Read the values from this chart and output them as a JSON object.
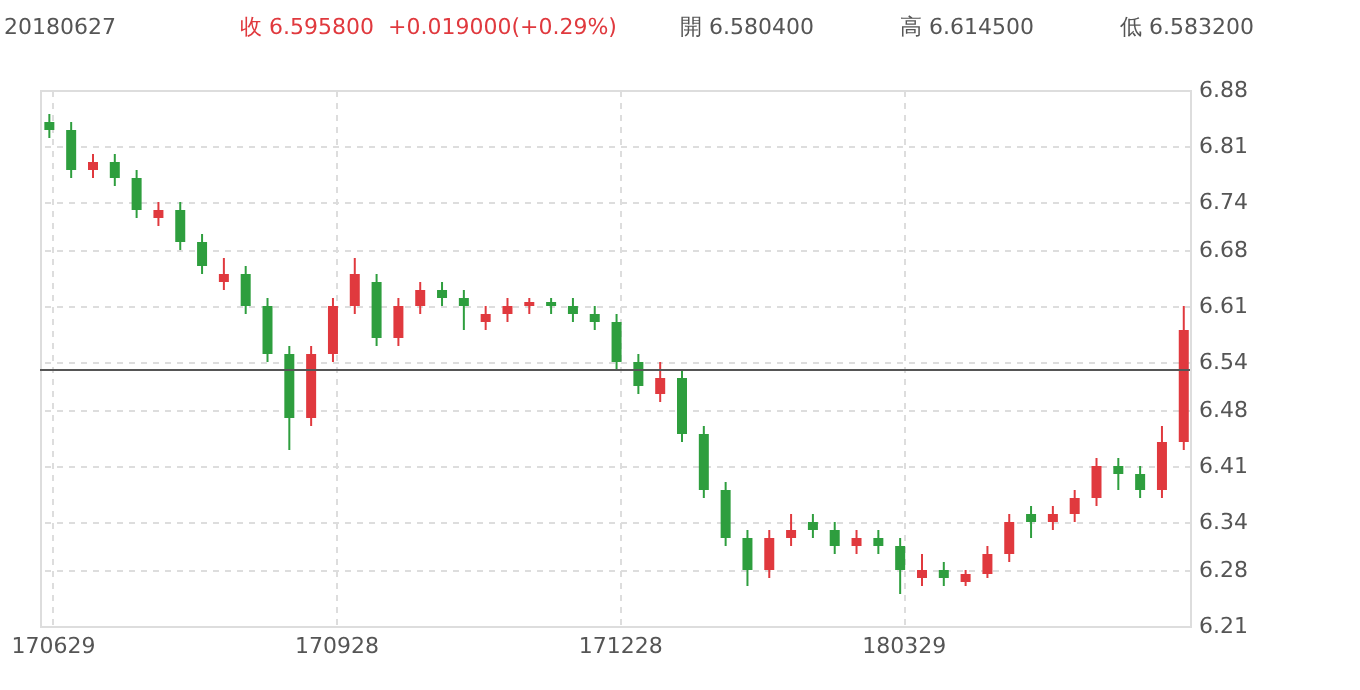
{
  "chart_data": {
    "type": "candlestick",
    "annotations": [
      "20180627",
      "收 6.595800",
      "+0.019000(+0.29%)",
      "開 6.580400",
      "高 6.614500",
      "低 6.583200"
    ],
    "x": [
      "2017-06-28",
      "2017-07-05",
      "2017-07-12",
      "2017-07-19",
      "2017-07-26",
      "2017-08-02",
      "2017-08-09",
      "2017-08-16",
      "2017-08-23",
      "2017-08-30",
      "2017-09-06",
      "2017-09-13",
      "2017-09-20",
      "2017-09-27",
      "2017-10-04",
      "2017-10-11",
      "2017-10-18",
      "2017-10-25",
      "2017-11-01",
      "2017-11-08",
      "2017-11-15",
      "2017-11-22",
      "2017-11-29",
      "2017-12-06",
      "2017-12-13",
      "2017-12-20",
      "2017-12-27",
      "2018-01-03",
      "2018-01-10",
      "2018-01-17",
      "2018-01-24",
      "2018-01-31",
      "2018-02-07",
      "2018-02-14",
      "2018-02-21",
      "2018-02-28",
      "2018-03-07",
      "2018-03-14",
      "2018-03-21",
      "2018-03-28",
      "2018-04-04",
      "2018-04-11",
      "2018-04-18",
      "2018-04-25",
      "2018-05-02",
      "2018-05-09",
      "2018-05-16",
      "2018-05-23",
      "2018-05-30",
      "2018-06-06",
      "2018-06-13",
      "2018-06-20",
      "2018-06-27"
    ],
    "ohlc": [
      [
        6.84,
        6.85,
        6.82,
        6.83
      ],
      [
        6.83,
        6.84,
        6.77,
        6.78
      ],
      [
        6.78,
        6.8,
        6.77,
        6.79
      ],
      [
        6.79,
        6.8,
        6.76,
        6.77
      ],
      [
        6.77,
        6.78,
        6.72,
        6.73
      ],
      [
        6.72,
        6.74,
        6.71,
        6.73
      ],
      [
        6.73,
        6.74,
        6.68,
        6.69
      ],
      [
        6.69,
        6.7,
        6.65,
        6.66
      ],
      [
        6.64,
        6.67,
        6.63,
        6.65
      ],
      [
        6.65,
        6.66,
        6.6,
        6.61
      ],
      [
        6.61,
        6.62,
        6.54,
        6.55
      ],
      [
        6.55,
        6.56,
        6.43,
        6.47
      ],
      [
        6.47,
        6.56,
        6.46,
        6.55
      ],
      [
        6.55,
        6.62,
        6.54,
        6.61
      ],
      [
        6.61,
        6.67,
        6.6,
        6.65
      ],
      [
        6.64,
        6.65,
        6.56,
        6.57
      ],
      [
        6.57,
        6.62,
        6.56,
        6.61
      ],
      [
        6.61,
        6.64,
        6.6,
        6.63
      ],
      [
        6.63,
        6.64,
        6.61,
        6.62
      ],
      [
        6.62,
        6.63,
        6.58,
        6.61
      ],
      [
        6.59,
        6.61,
        6.58,
        6.6
      ],
      [
        6.6,
        6.62,
        6.59,
        6.61
      ],
      [
        6.61,
        6.62,
        6.6,
        6.615
      ],
      [
        6.615,
        6.62,
        6.6,
        6.61
      ],
      [
        6.61,
        6.62,
        6.59,
        6.6
      ],
      [
        6.6,
        6.61,
        6.58,
        6.59
      ],
      [
        6.59,
        6.6,
        6.53,
        6.54
      ],
      [
        6.54,
        6.55,
        6.5,
        6.51
      ],
      [
        6.5,
        6.54,
        6.49,
        6.52
      ],
      [
        6.52,
        6.53,
        6.44,
        6.45
      ],
      [
        6.45,
        6.46,
        6.37,
        6.38
      ],
      [
        6.38,
        6.39,
        6.31,
        6.32
      ],
      [
        6.32,
        6.33,
        6.26,
        6.28
      ],
      [
        6.28,
        6.33,
        6.27,
        6.32
      ],
      [
        6.32,
        6.35,
        6.31,
        6.33
      ],
      [
        6.34,
        6.35,
        6.32,
        6.33
      ],
      [
        6.33,
        6.34,
        6.3,
        6.31
      ],
      [
        6.31,
        6.33,
        6.3,
        6.32
      ],
      [
        6.32,
        6.33,
        6.3,
        6.31
      ],
      [
        6.31,
        6.32,
        6.25,
        6.28
      ],
      [
        6.27,
        6.3,
        6.26,
        6.28
      ],
      [
        6.28,
        6.29,
        6.26,
        6.27
      ],
      [
        6.265,
        6.28,
        6.26,
        6.275
      ],
      [
        6.275,
        6.31,
        6.27,
        6.3
      ],
      [
        6.3,
        6.35,
        6.29,
        6.34
      ],
      [
        6.35,
        6.36,
        6.32,
        6.34
      ],
      [
        6.34,
        6.36,
        6.33,
        6.35
      ],
      [
        6.35,
        6.38,
        6.34,
        6.37
      ],
      [
        6.37,
        6.42,
        6.36,
        6.41
      ],
      [
        6.41,
        6.42,
        6.38,
        6.4
      ],
      [
        6.4,
        6.41,
        6.37,
        6.38
      ],
      [
        6.38,
        6.46,
        6.37,
        6.44
      ],
      [
        6.44,
        6.61,
        6.43,
        6.58
      ]
    ],
    "colors": [
      "#2e9e3e",
      "#2e9e3e",
      "#e0393e",
      "#2e9e3e",
      "#2e9e3e",
      "#e0393e",
      "#2e9e3e",
      "#2e9e3e",
      "#e0393e",
      "#2e9e3e",
      "#2e9e3e",
      "#2e9e3e",
      "#e0393e",
      "#e0393e",
      "#e0393e",
      "#2e9e3e",
      "#e0393e",
      "#e0393e",
      "#2e9e3e",
      "#2e9e3e",
      "#e0393e",
      "#e0393e",
      "#e0393e",
      "#2e9e3e",
      "#2e9e3e",
      "#2e9e3e",
      "#2e9e3e",
      "#2e9e3e",
      "#e0393e",
      "#2e9e3e",
      "#2e9e3e",
      "#2e9e3e",
      "#2e9e3e",
      "#e0393e",
      "#e0393e",
      "#2e9e3e",
      "#2e9e3e",
      "#e0393e",
      "#2e9e3e",
      "#2e9e3e",
      "#e0393e",
      "#2e9e3e",
      "#e0393e",
      "#e0393e",
      "#e0393e",
      "#2e9e3e",
      "#e0393e",
      "#e0393e",
      "#e0393e",
      "#2e9e3e",
      "#2e9e3e",
      "#e0393e",
      "#e0393e"
    ],
    "xlim": [
      "2017-06-25",
      "2018-06-29"
    ],
    "xticks": [
      {
        "value": "2017-06-29",
        "label": "170629"
      },
      {
        "value": "2017-09-28",
        "label": "170928"
      },
      {
        "value": "2017-12-28",
        "label": "171228"
      },
      {
        "value": "2018-03-29",
        "label": "180329"
      }
    ],
    "ylim": [
      6.21,
      6.88
    ],
    "yticks": [
      6.21,
      6.28,
      6.34,
      6.41,
      6.48,
      6.54,
      6.61,
      6.68,
      6.74,
      6.81,
      6.88
    ],
    "ref_lines": [
      {
        "axis": "y",
        "value": 6.53,
        "color": "#555555"
      }
    ],
    "grid": true
  }
}
